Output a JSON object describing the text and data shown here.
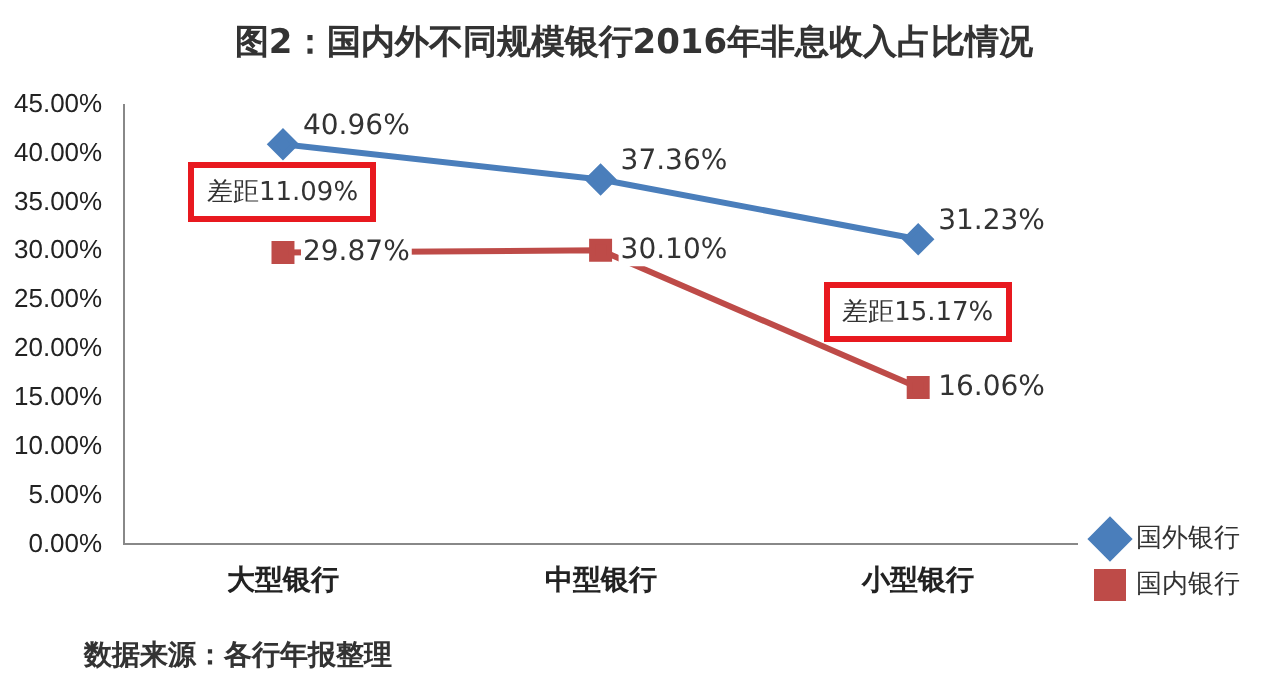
{
  "chart_data": {
    "type": "line",
    "title": "图2：国内外不同规模银行2016年非息收入占比情况",
    "categories": [
      "大型银行",
      "中型银行",
      "小型银行"
    ],
    "series": [
      {
        "name": "国外银行",
        "color": "#4a7ebb",
        "marker": "diamond",
        "values": [
          40.96,
          37.36,
          31.23
        ],
        "value_labels": [
          "40.96%",
          "37.36%",
          "31.23%"
        ]
      },
      {
        "name": "国内银行",
        "color": "#be4b48",
        "marker": "square",
        "values": [
          29.87,
          30.1,
          16.06
        ],
        "value_labels": [
          "29.87%",
          "30.10%",
          "16.06%"
        ]
      }
    ],
    "ylim": [
      0,
      45
    ],
    "yticks": [
      {
        "value": 0,
        "label": "0.00%"
      },
      {
        "value": 5,
        "label": "5.00%"
      },
      {
        "value": 10,
        "label": "10.00%"
      },
      {
        "value": 15,
        "label": "15.00%"
      },
      {
        "value": 20,
        "label": "20.00%"
      },
      {
        "value": 25,
        "label": "25.00%"
      },
      {
        "value": 30,
        "label": "30.00%"
      },
      {
        "value": 35,
        "label": "35.00%"
      },
      {
        "value": 40,
        "label": "40.00%"
      },
      {
        "value": 45,
        "label": "45.00%"
      }
    ],
    "grid": false,
    "legend": "bottom right",
    "line_style": "solid",
    "annotations": [
      "差距11.09%",
      "差距15.17%",
      "数据来源：各行年报整理"
    ]
  }
}
